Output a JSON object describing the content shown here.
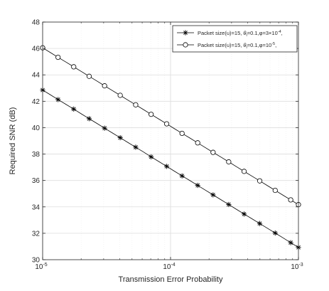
{
  "chart_data": {
    "type": "line",
    "title": "",
    "xlabel": "Transmission Error Probability",
    "ylabel": "Required SNR (dB)",
    "x_scale": "log",
    "xlim": [
      1e-05,
      0.001
    ],
    "ylim": [
      30,
      48
    ],
    "grid": true,
    "legend_position": "top-right",
    "x_ticks": [
      {
        "value": 1e-05,
        "base": "10",
        "exp": "-5"
      },
      {
        "value": 0.0001,
        "base": "10",
        "exp": "-4"
      },
      {
        "value": 0.001,
        "base": "10",
        "exp": "-3"
      }
    ],
    "y_ticks": [
      30,
      32,
      34,
      36,
      38,
      40,
      42,
      44,
      46,
      48
    ],
    "series": [
      {
        "name": "Packet size(u)=15,  θ_l=0.1,φ=3×10^-4,",
        "legend_parts": {
          "a": "Packet size(u)=15,  ",
          "theta": "θ",
          "sub": "l",
          "b": "=0.1,φ=3×10",
          "sup": "-4",
          "c": ","
        },
        "marker": "star",
        "color": "#000000",
        "x": [
          1e-05,
          1.15e-05,
          1.32e-05,
          1.52e-05,
          1.75e-05,
          2.01e-05,
          2.31e-05,
          2.66e-05,
          3.05e-05,
          3.51e-05,
          4.04e-05,
          4.64e-05,
          5.34e-05,
          6.14e-05,
          7.05e-05,
          8.11e-05,
          9.33e-05,
          0.000107,
          0.000123,
          0.000142,
          0.000163,
          0.000187,
          0.000215,
          0.000248,
          0.000285,
          0.000327,
          0.000376,
          0.000433,
          0.000498,
          0.000572,
          0.000658,
          0.000756,
          0.00087,
          0.001
        ],
        "y": [
          42.85,
          42.49,
          42.13,
          41.77,
          41.41,
          41.04,
          40.68,
          40.32,
          39.96,
          39.6,
          39.24,
          38.88,
          38.52,
          38.16,
          37.79,
          37.43,
          37.07,
          36.71,
          36.35,
          35.99,
          35.63,
          35.27,
          34.91,
          34.54,
          34.18,
          33.82,
          33.46,
          33.1,
          32.74,
          32.38,
          32.02,
          31.66,
          31.29,
          30.93
        ]
      },
      {
        "name": "Packet size(u)=15,  θ_l=0.1,φ=10^-5,",
        "legend_parts": {
          "a": "Packet size(u)=15,  ",
          "theta": "θ",
          "sub": "l",
          "b": "=0.1,φ=10",
          "sup": "-5",
          "c": ","
        },
        "marker": "circle",
        "color": "#000000",
        "x": [
          1e-05,
          1.15e-05,
          1.32e-05,
          1.52e-05,
          1.75e-05,
          2.01e-05,
          2.31e-05,
          2.66e-05,
          3.05e-05,
          3.51e-05,
          4.04e-05,
          4.64e-05,
          5.34e-05,
          6.14e-05,
          7.05e-05,
          8.11e-05,
          9.33e-05,
          0.000107,
          0.000123,
          0.000142,
          0.000163,
          0.000187,
          0.000215,
          0.000248,
          0.000285,
          0.000327,
          0.000376,
          0.000433,
          0.000498,
          0.000572,
          0.000658,
          0.000756,
          0.00087,
          0.001
        ],
        "y": [
          46.05,
          45.69,
          45.33,
          44.97,
          44.61,
          44.25,
          43.89,
          43.53,
          43.17,
          42.81,
          42.45,
          42.09,
          41.73,
          41.37,
          41.01,
          40.65,
          40.29,
          39.93,
          39.57,
          39.21,
          38.85,
          38.49,
          38.13,
          37.77,
          37.41,
          37.05,
          36.69,
          36.33,
          35.97,
          35.61,
          35.25,
          34.89,
          34.53,
          34.17
        ]
      }
    ],
    "marker_indices": [
      0,
      2,
      4,
      6,
      8,
      10,
      12,
      14,
      16,
      18,
      20,
      22,
      24,
      26,
      28,
      30,
      32,
      33
    ]
  }
}
